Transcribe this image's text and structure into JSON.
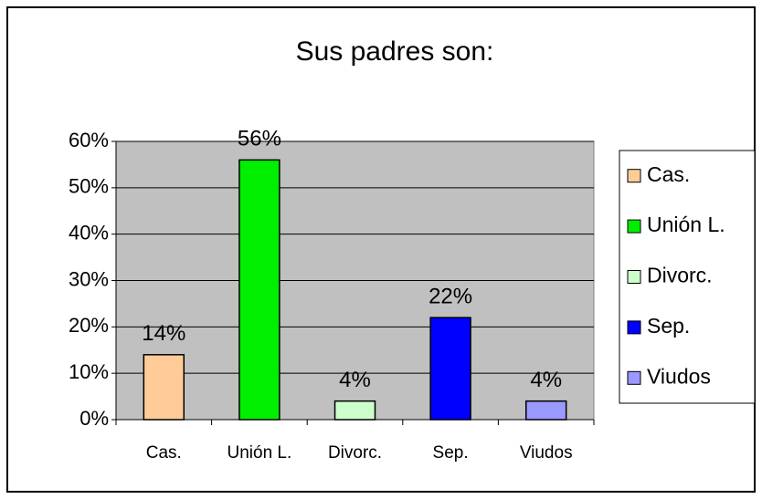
{
  "chart_data": {
    "type": "bar",
    "title": "Sus padres son:",
    "categories": [
      "Cas.",
      "Unión L.",
      "Divorc.",
      "Sep.",
      "Viudos"
    ],
    "values": [
      14,
      56,
      4,
      22,
      4
    ],
    "value_labels": [
      "14%",
      "56%",
      "4%",
      "22%",
      "4%"
    ],
    "colors": [
      "#ffcc99",
      "#00ee00",
      "#ccffcc",
      "#0000ff",
      "#9999ff"
    ],
    "ylim": [
      0,
      60
    ],
    "yticks": [
      {
        "value": 0,
        "label": "0%"
      },
      {
        "value": 10,
        "label": "10%"
      },
      {
        "value": 20,
        "label": "20%"
      },
      {
        "value": 30,
        "label": "30%"
      },
      {
        "value": 40,
        "label": "40%"
      },
      {
        "value": 50,
        "label": "50%"
      },
      {
        "value": 60,
        "label": "60%"
      }
    ],
    "grid": true,
    "legend": "right"
  }
}
